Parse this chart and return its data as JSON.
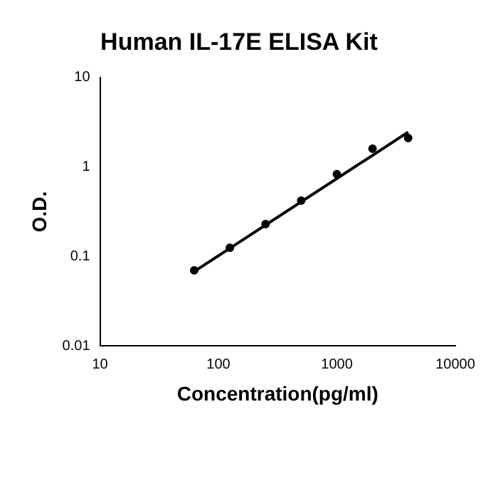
{
  "chart_data": {
    "type": "scatter",
    "title": "Human IL-17E ELISA Kit",
    "xlabel": "Concentration(pg/ml)",
    "ylabel": "O.D.",
    "x": [
      62.5,
      125,
      250,
      500,
      1000,
      2000,
      4000
    ],
    "series": [
      {
        "color": "#000000",
        "marker": "circle",
        "values": [
          0.07,
          0.125,
          0.23,
          0.42,
          0.83,
          1.6,
          2.1
        ]
      },
      {
        "type": "line",
        "color": "#000000",
        "marker": "none",
        "x": [
          62.5,
          4000
        ],
        "values": [
          0.068,
          2.45
        ]
      }
    ],
    "log": "xy",
    "xlim": [
      10,
      10000
    ],
    "ylim": [
      0.01,
      10
    ],
    "xticks": [
      10,
      100,
      1000,
      10000
    ],
    "yticks": [
      0.01,
      0.1,
      1,
      10
    ],
    "grid": false,
    "legend": false,
    "line_style": "solid"
  }
}
